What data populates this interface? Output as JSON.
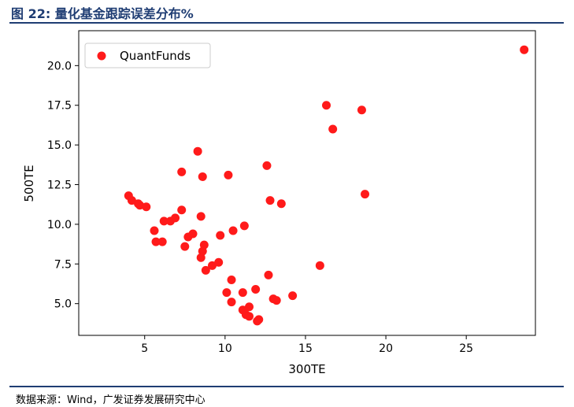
{
  "figure": {
    "title": "图 22:  量化基金跟踪误差分布%",
    "source": "数据来源：Wind，广发证券发展研究中心"
  },
  "colors": {
    "marker": "#ff1a1a",
    "rule": "#1f3d73"
  },
  "chart_data": {
    "type": "scatter",
    "title": "",
    "xlabel": "300TE",
    "ylabel": "500TE",
    "xlim": [
      0.9,
      29.3
    ],
    "ylim": [
      3.0,
      22.2
    ],
    "xticks": [
      5,
      10,
      15,
      20,
      25
    ],
    "yticks": [
      5.0,
      7.5,
      10.0,
      12.5,
      15.0,
      17.5,
      20.0
    ],
    "xtick_labels": [
      "5",
      "10",
      "15",
      "20",
      "25"
    ],
    "ytick_labels": [
      "5.0",
      "7.5",
      "10.0",
      "12.5",
      "15.0",
      "17.5",
      "20.0"
    ],
    "grid": false,
    "legend": {
      "position": "top-left",
      "entries": [
        "QuantFunds"
      ]
    },
    "series": [
      {
        "name": "QuantFunds",
        "points": [
          [
            4.0,
            11.8
          ],
          [
            4.2,
            11.5
          ],
          [
            4.6,
            11.3
          ],
          [
            4.7,
            11.2
          ],
          [
            5.1,
            11.1
          ],
          [
            5.6,
            9.6
          ],
          [
            5.7,
            8.9
          ],
          [
            6.1,
            8.9
          ],
          [
            6.2,
            10.2
          ],
          [
            6.6,
            10.2
          ],
          [
            6.9,
            10.4
          ],
          [
            7.3,
            10.9
          ],
          [
            7.3,
            13.3
          ],
          [
            7.5,
            8.6
          ],
          [
            7.7,
            9.2
          ],
          [
            8.0,
            9.4
          ],
          [
            8.3,
            14.6
          ],
          [
            8.5,
            10.5
          ],
          [
            8.6,
            13.0
          ],
          [
            8.5,
            7.9
          ],
          [
            8.6,
            8.3
          ],
          [
            8.7,
            8.7
          ],
          [
            8.8,
            7.1
          ],
          [
            9.2,
            7.4
          ],
          [
            9.6,
            7.6
          ],
          [
            9.7,
            9.3
          ],
          [
            10.1,
            5.7
          ],
          [
            10.2,
            13.1
          ],
          [
            10.4,
            5.1
          ],
          [
            10.4,
            6.5
          ],
          [
            10.5,
            9.6
          ],
          [
            11.1,
            4.6
          ],
          [
            11.1,
            5.7
          ],
          [
            11.2,
            9.9
          ],
          [
            11.3,
            4.3
          ],
          [
            11.5,
            4.2
          ],
          [
            11.5,
            4.8
          ],
          [
            11.9,
            5.9
          ],
          [
            12.0,
            3.9
          ],
          [
            12.1,
            4.0
          ],
          [
            12.6,
            13.7
          ],
          [
            12.7,
            6.8
          ],
          [
            12.8,
            11.5
          ],
          [
            13.0,
            5.3
          ],
          [
            13.2,
            5.2
          ],
          [
            13.5,
            11.3
          ],
          [
            14.2,
            5.5
          ],
          [
            15.9,
            7.4
          ],
          [
            16.3,
            17.5
          ],
          [
            16.7,
            16.0
          ],
          [
            18.5,
            17.2
          ],
          [
            18.7,
            11.9
          ],
          [
            28.6,
            21.0
          ]
        ]
      }
    ]
  }
}
